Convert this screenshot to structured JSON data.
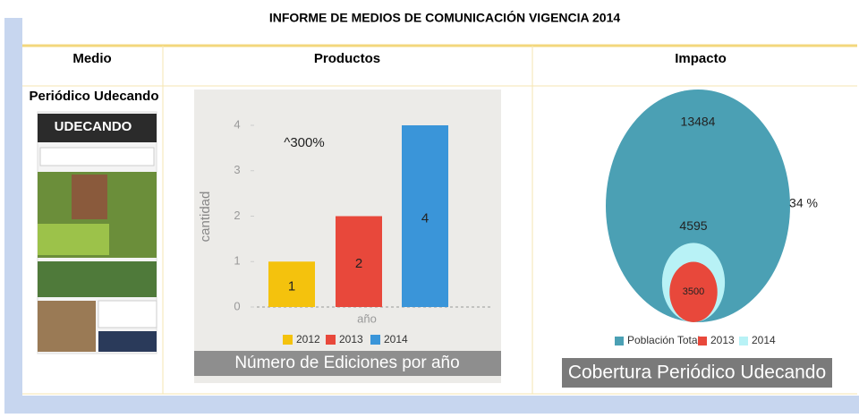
{
  "title": "INFORME DE MEDIOS DE COMUNICACIÓN VIGENCIA 2014",
  "table": {
    "headers": [
      "Medio",
      "Productos",
      "Impacto"
    ],
    "medio": "Periódico Udecando",
    "masthead": "UDECANDO"
  },
  "chart_data": [
    {
      "type": "bar",
      "title": "Número de Ediciones por año",
      "annotation": "^300%",
      "x_label": "año",
      "y_label": "cantidad",
      "categories": [
        "2012",
        "2013",
        "2014"
      ],
      "values": [
        1,
        2,
        4
      ],
      "colors": [
        "#f4c20d",
        "#e8483b",
        "#3a95d9"
      ],
      "ylim": [
        0,
        4
      ],
      "yticks": [
        0,
        1,
        2,
        3,
        4
      ],
      "legend": "bottom"
    },
    {
      "type": "bubble",
      "title": "Cobertura Periódico Udecando",
      "annotation": "34 %",
      "series": [
        {
          "name": "Población Total",
          "color": "#4ba0b4",
          "values": [
            13484
          ]
        },
        {
          "name": "2013",
          "color": "#e8483b",
          "values": [
            3500
          ]
        },
        {
          "name": "2014",
          "color": "#b8f2f6",
          "values": [
            4595
          ]
        }
      ],
      "legend": "bottom"
    }
  ]
}
